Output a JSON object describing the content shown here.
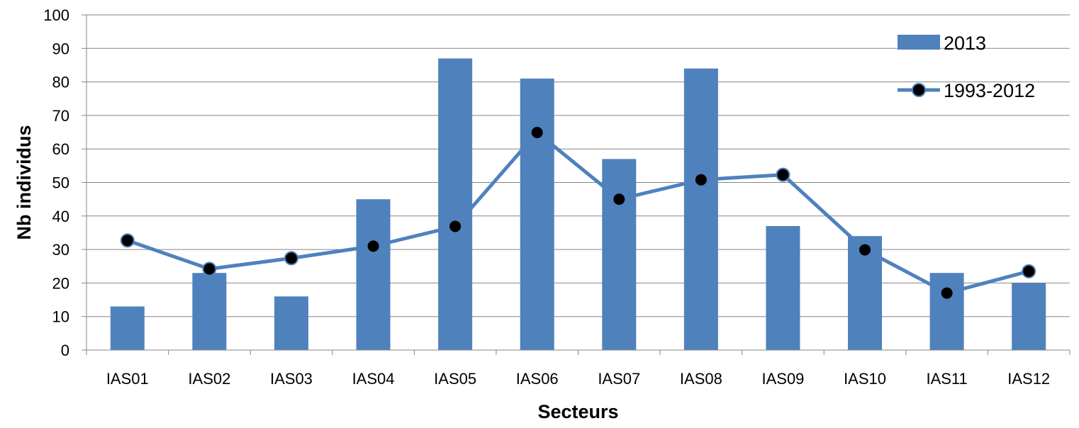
{
  "chart_data": {
    "type": "bar",
    "title": "",
    "xlabel": "Secteurs",
    "ylabel": "Nb individus",
    "ylim": [
      0,
      100
    ],
    "ytick_step": 10,
    "yticks": [
      "0",
      "10",
      "20",
      "30",
      "40",
      "50",
      "60",
      "70",
      "80",
      "90",
      "100"
    ],
    "grid": true,
    "legend_position": "top-right",
    "categories": [
      "IAS01",
      "IAS02",
      "IAS03",
      "IAS04",
      "IAS05",
      "IAS06",
      "IAS07",
      "IAS08",
      "IAS09",
      "IAS10",
      "IAS11",
      "IAS12"
    ],
    "series": [
      {
        "name": "2013",
        "kind": "bar",
        "color": "#4F81BD",
        "values": [
          13,
          23,
          16,
          45,
          87,
          81,
          57,
          84,
          37,
          34,
          23,
          20
        ]
      },
      {
        "name": "1993-2012",
        "kind": "line",
        "color": "#4F81BD",
        "marker_color": "#000000",
        "values": [
          32.7,
          24.2,
          27.4,
          31,
          36.9,
          64.9,
          45,
          50.8,
          52.3,
          29.9,
          17,
          23.5
        ]
      }
    ]
  }
}
